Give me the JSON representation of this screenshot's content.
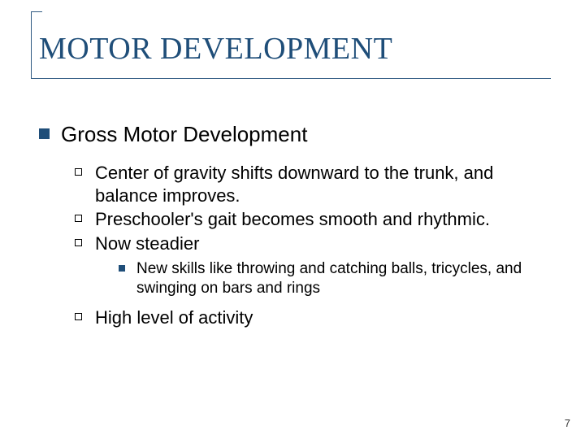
{
  "title": "MOTOR DEVELOPMENT",
  "heading": "Gross Motor Development",
  "points": {
    "p1": "Center of gravity shifts downward to the trunk, and balance improves.",
    "p2": "Preschooler's gait becomes smooth and rhythmic.",
    "p3": "Now steadier",
    "p3sub": "New skills like throwing and catching balls, tricycles, and swinging on bars and rings",
    "p4": "High level of activity"
  },
  "page_number": "7",
  "colors": {
    "accent": "#1f4e79",
    "rule": "#2f5a82",
    "text": "#000000",
    "background": "#ffffff"
  }
}
